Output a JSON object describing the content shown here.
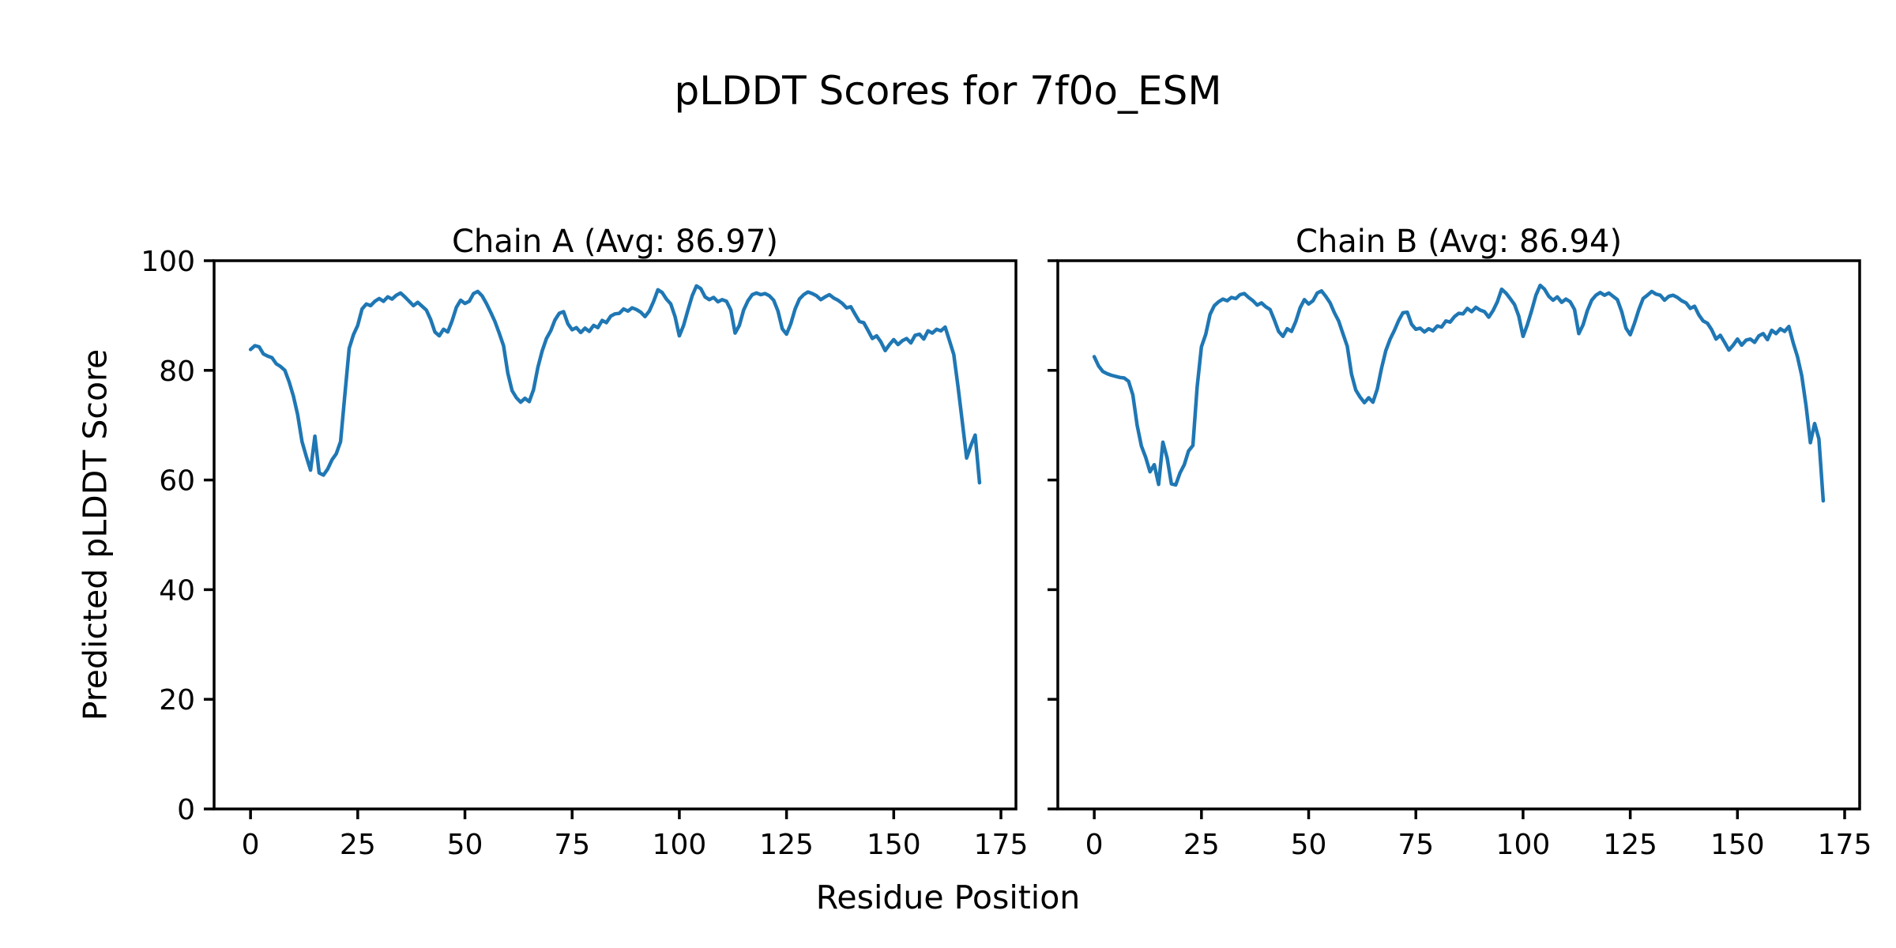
{
  "figure": {
    "title": "pLDDT Scores for 7f0o_ESM",
    "xlabel": "Residue Position",
    "ylabel": "Predicted pLDDT Score",
    "background_color": "#ffffff",
    "text_color": "#000000",
    "spine_color": "#000000"
  },
  "chart_data": [
    {
      "type": "line",
      "title": "Chain A (Avg: 86.97)",
      "chain": "A",
      "avg_plddt": 86.97,
      "line_color": "#1f77b4",
      "grid": false,
      "legend": false,
      "markers": false,
      "xlim": [
        -8.5,
        178.5
      ],
      "ylim": [
        0,
        100
      ],
      "x_ticks": [
        0,
        25,
        50,
        75,
        100,
        125,
        150,
        175
      ],
      "y_ticks": [
        0,
        20,
        40,
        60,
        80,
        100
      ],
      "show_y_tick_labels": true,
      "x_start": 0,
      "x_step": 1,
      "values": [
        83.8,
        84.5,
        84.3,
        83.0,
        82.6,
        82.3,
        81.2,
        80.7,
        80.0,
        77.9,
        75.3,
        71.9,
        67.0,
        64.3,
        61.8,
        68.0,
        61.3,
        60.9,
        62.0,
        63.7,
        64.8,
        67.0,
        75.5,
        84.0,
        86.5,
        88.2,
        91.2,
        92.1,
        91.8,
        92.6,
        93.1,
        92.6,
        93.4,
        93.0,
        93.7,
        94.1,
        93.4,
        92.6,
        91.8,
        92.4,
        91.7,
        91.0,
        89.3,
        87.0,
        86.3,
        87.5,
        87.0,
        89.0,
        91.5,
        92.8,
        92.2,
        92.6,
        94.0,
        94.4,
        93.6,
        92.2,
        90.6,
        88.9,
        86.8,
        84.5,
        79.5,
        76.3,
        75.0,
        74.2,
        74.9,
        74.3,
        76.5,
        80.5,
        83.5,
        85.8,
        87.2,
        89.2,
        90.4,
        90.7,
        88.5,
        87.4,
        87.8,
        86.9,
        87.7,
        87.1,
        88.2,
        87.8,
        89.1,
        88.7,
        89.9,
        90.3,
        90.4,
        91.2,
        90.8,
        91.4,
        91.1,
        90.6,
        89.8,
        90.8,
        92.6,
        94.7,
        94.2,
        93.0,
        92.1,
        89.8,
        86.3,
        88.2,
        91.0,
        93.6,
        95.4,
        94.9,
        93.4,
        92.9,
        93.3,
        92.5,
        92.9,
        92.6,
        91.0,
        86.8,
        88.2,
        91.0,
        92.7,
        93.8,
        94.1,
        93.8,
        94.0,
        93.6,
        92.8,
        90.8,
        87.6,
        86.6,
        88.5,
        91.2,
        93.0,
        93.8,
        94.3,
        94.0,
        93.6,
        92.9,
        93.4,
        93.8,
        93.2,
        92.8,
        92.2,
        91.4,
        91.6,
        90.2,
        88.9,
        88.7,
        87.3,
        85.8,
        86.3,
        85.2,
        83.6,
        84.7,
        85.6,
        84.7,
        85.4,
        85.8,
        85.0,
        86.4,
        86.6,
        85.7,
        87.2,
        86.8,
        87.5,
        87.2,
        87.9,
        85.4,
        82.9,
        77.0,
        70.5,
        64.0,
        66.3,
        68.2,
        59.5
      ]
    },
    {
      "type": "line",
      "title": "Chain B (Avg: 86.94)",
      "chain": "B",
      "avg_plddt": 86.94,
      "line_color": "#1f77b4",
      "grid": false,
      "legend": false,
      "markers": false,
      "xlim": [
        -8.5,
        178.5
      ],
      "ylim": [
        0,
        100
      ],
      "x_ticks": [
        0,
        25,
        50,
        75,
        100,
        125,
        150,
        175
      ],
      "y_ticks": [
        0,
        20,
        40,
        60,
        80,
        100
      ],
      "show_y_tick_labels": false,
      "x_start": 0,
      "x_step": 1,
      "values": [
        82.5,
        80.8,
        79.8,
        79.4,
        79.1,
        78.9,
        78.7,
        78.6,
        78.0,
        75.5,
        70.0,
        66.2,
        64.1,
        61.5,
        62.8,
        59.2,
        66.9,
        64.0,
        59.3,
        59.1,
        61.3,
        62.8,
        65.3,
        66.3,
        77.0,
        84.3,
        86.6,
        90.2,
        91.8,
        92.5,
        93.0,
        92.7,
        93.3,
        93.1,
        93.8,
        94.0,
        93.3,
        92.7,
        91.9,
        92.3,
        91.6,
        91.1,
        89.2,
        87.1,
        86.2,
        87.6,
        87.1,
        88.9,
        91.4,
        92.9,
        92.1,
        92.7,
        94.1,
        94.5,
        93.5,
        92.3,
        90.5,
        89.0,
        86.7,
        84.4,
        79.3,
        76.4,
        75.1,
        74.1,
        75.0,
        74.2,
        76.6,
        80.4,
        83.6,
        85.7,
        87.3,
        89.1,
        90.5,
        90.6,
        88.4,
        87.5,
        87.7,
        87.0,
        87.6,
        87.2,
        88.1,
        87.9,
        89.0,
        88.8,
        89.8,
        90.4,
        90.3,
        91.3,
        90.7,
        91.5,
        91.0,
        90.7,
        89.7,
        90.9,
        92.5,
        94.8,
        94.1,
        93.1,
        92.0,
        89.9,
        86.2,
        88.3,
        90.9,
        93.7,
        95.5,
        94.8,
        93.5,
        92.8,
        93.4,
        92.4,
        93.0,
        92.5,
        91.1,
        86.7,
        88.3,
        90.9,
        92.8,
        93.7,
        94.2,
        93.7,
        94.1,
        93.5,
        92.9,
        90.7,
        87.7,
        86.5,
        88.6,
        91.1,
        93.1,
        93.7,
        94.4,
        93.9,
        93.7,
        92.8,
        93.5,
        93.7,
        93.3,
        92.7,
        92.3,
        91.3,
        91.7,
        90.1,
        89.0,
        88.6,
        87.4,
        85.7,
        86.4,
        85.1,
        83.7,
        84.6,
        85.7,
        84.6,
        85.5,
        85.7,
        85.1,
        86.3,
        86.7,
        85.6,
        87.3,
        86.7,
        87.6,
        87.1,
        88.0,
        85.0,
        82.5,
        79.0,
        73.5,
        66.8,
        70.3,
        67.5,
        56.2
      ]
    }
  ]
}
